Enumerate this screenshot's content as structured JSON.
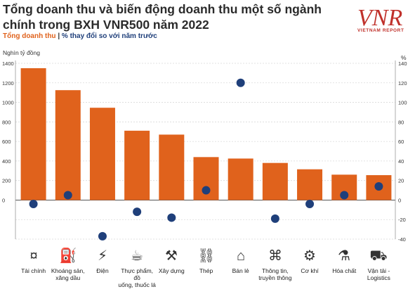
{
  "header": {
    "title": "Tổng doanh thu và biến động doanh thu một số ngành chính trong BXH VNR500 năm 2022",
    "subtitle_revenue": "Tổng doanh thu",
    "subtitle_separator": "|",
    "subtitle_change": "% thay đổi so với năm trước",
    "logo_text": "VNR",
    "logo_subtext": "VIETNAM REPORT"
  },
  "colors": {
    "bar": "#e0621c",
    "dot": "#1f3f7a",
    "title": "#2b2b2b",
    "logo": "#c0312b"
  },
  "chart_data": {
    "type": "bar",
    "title": "Tổng doanh thu và biến động doanh thu một số ngành chính trong BXH VNR500 năm 2022",
    "ylabel": "Nghìn tỷ đồng",
    "y2label": "%",
    "ylim": [
      -400,
      1400
    ],
    "y2lim": [
      -40,
      140
    ],
    "yticks": [
      "1400",
      "1200",
      "1000",
      "800",
      "600",
      "400",
      "200",
      "0",
      "",
      ""
    ],
    "y2ticks": [
      "140",
      "120",
      "100",
      "80",
      "60",
      "40",
      "20",
      "0",
      "-20",
      "-40"
    ],
    "grid": true,
    "categories": [
      "Tài chính",
      "Khoáng sản, xăng dầu",
      "Điện",
      "Thực phẩm, đồ uống, thuốc lá",
      "Xây dựng",
      "Thép",
      "Bán lẻ",
      "Thông tin, truyền thông",
      "Cơ khí",
      "Hóa chất",
      "Vận tải - Logistics"
    ],
    "category_lines": [
      [
        "Tài chính"
      ],
      [
        "Khoáng sản,",
        "xăng dầu"
      ],
      [
        "Điện"
      ],
      [
        "Thực phẩm, đồ",
        "uống, thuốc lá"
      ],
      [
        "Xây dựng"
      ],
      [
        "Thép"
      ],
      [
        "Bán lẻ"
      ],
      [
        "Thông tin,",
        "truyền thông"
      ],
      [
        "Cơ khí"
      ],
      [
        "Hóa chất"
      ],
      [
        "Vận tải -",
        "Logistics"
      ]
    ],
    "icons": [
      "money-icon",
      "oil-rig-icon",
      "power-tower-icon",
      "food-drink-icon",
      "crane-icon",
      "steel-beam-icon",
      "shop-icon",
      "network-icon",
      "gear-icon",
      "chemical-flask-icon",
      "truck-icon"
    ],
    "series": [
      {
        "name": "Tổng doanh thu",
        "type": "bar",
        "axis": "left",
        "values": [
          1350,
          1125,
          945,
          710,
          670,
          440,
          425,
          380,
          315,
          260,
          255
        ]
      },
      {
        "name": "% thay đổi so với năm trước",
        "type": "scatter",
        "axis": "right",
        "values": [
          -4,
          5,
          -37,
          -12,
          -18,
          10,
          120,
          -19,
          -4,
          5,
          14
        ]
      }
    ]
  }
}
